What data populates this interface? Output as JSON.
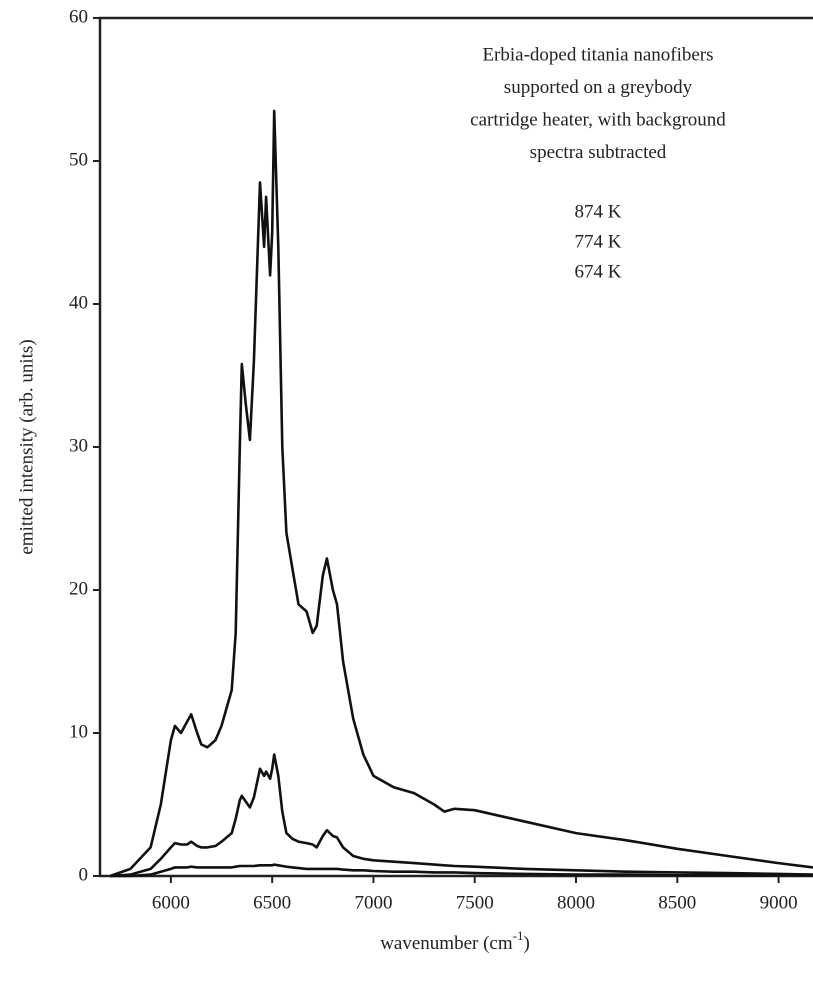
{
  "chart_data": {
    "type": "line",
    "annotation": [
      "Erbia-doped titania nanofibers",
      "supported on a greybody",
      "cartridge heater, with background",
      "spectra subtracted"
    ],
    "x_label": [
      "wavenumber (cm",
      "-1",
      ")"
    ],
    "y_label": "emitted intensity (arb. units)",
    "x": [
      5700,
      5800,
      5900,
      5950,
      6000,
      6020,
      6050,
      6080,
      6100,
      6130,
      6150,
      6180,
      6220,
      6250,
      6300,
      6320,
      6340,
      6350,
      6370,
      6390,
      6410,
      6440,
      6460,
      6470,
      6490,
      6500,
      6510,
      6530,
      6550,
      6570,
      6600,
      6630,
      6670,
      6700,
      6720,
      6750,
      6770,
      6800,
      6820,
      6850,
      6900,
      6950,
      7000,
      7100,
      7200,
      7300,
      7350,
      7400,
      7500,
      7750,
      8000,
      8250,
      8500,
      8750,
      9000,
      9170
    ],
    "series": [
      {
        "name": "874 K",
        "color": "#111111",
        "values": [
          0,
          0.5,
          2,
          5,
          9.5,
          10.5,
          10,
          10.8,
          11.3,
          10,
          9.2,
          9,
          9.5,
          10.5,
          13,
          17,
          30,
          35.8,
          33,
          30.5,
          36,
          48.5,
          44,
          47.5,
          42,
          45,
          53.5,
          44,
          30,
          24,
          21.5,
          19,
          18.5,
          17,
          17.5,
          21,
          22.2,
          20,
          19,
          15,
          11,
          8.5,
          7,
          6.2,
          5.8,
          5,
          4.5,
          4.7,
          4.6,
          3.8,
          3,
          2.5,
          1.9,
          1.4,
          0.9,
          0.6
        ]
      },
      {
        "name": "774 K",
        "color": "#111111",
        "values": [
          0,
          0.1,
          0.5,
          1.2,
          2,
          2.3,
          2.2,
          2.2,
          2.4,
          2.1,
          2,
          2,
          2.1,
          2.4,
          3,
          4,
          5.3,
          5.6,
          5.2,
          4.8,
          5.5,
          7.5,
          7,
          7.3,
          6.8,
          7.5,
          8.5,
          7,
          4.5,
          3,
          2.6,
          2.4,
          2.3,
          2.2,
          2,
          2.8,
          3.2,
          2.8,
          2.7,
          2,
          1.4,
          1.2,
          1.1,
          1,
          0.9,
          0.8,
          0.75,
          0.7,
          0.65,
          0.5,
          0.4,
          0.3,
          0.25,
          0.2,
          0.15,
          0.1
        ]
      },
      {
        "name": "674 K",
        "color": "#111111",
        "values": [
          0,
          0,
          0.1,
          0.3,
          0.5,
          0.6,
          0.6,
          0.6,
          0.65,
          0.6,
          0.6,
          0.6,
          0.6,
          0.6,
          0.6,
          0.65,
          0.7,
          0.7,
          0.7,
          0.7,
          0.7,
          0.75,
          0.75,
          0.75,
          0.75,
          0.75,
          0.8,
          0.75,
          0.7,
          0.65,
          0.6,
          0.55,
          0.5,
          0.5,
          0.5,
          0.5,
          0.5,
          0.5,
          0.5,
          0.45,
          0.4,
          0.4,
          0.35,
          0.3,
          0.3,
          0.25,
          0.25,
          0.25,
          0.2,
          0.15,
          0.1,
          0.1,
          0.05,
          0.05,
          0.05,
          0.05
        ]
      }
    ],
    "xlim": [
      5650,
      9170
    ],
    "ylim": [
      0,
      60
    ],
    "xticks": [
      6000,
      6500,
      7000,
      7500,
      8000,
      8500,
      9000
    ],
    "yticks": [
      0,
      10,
      20,
      30,
      40,
      50,
      60
    ]
  }
}
